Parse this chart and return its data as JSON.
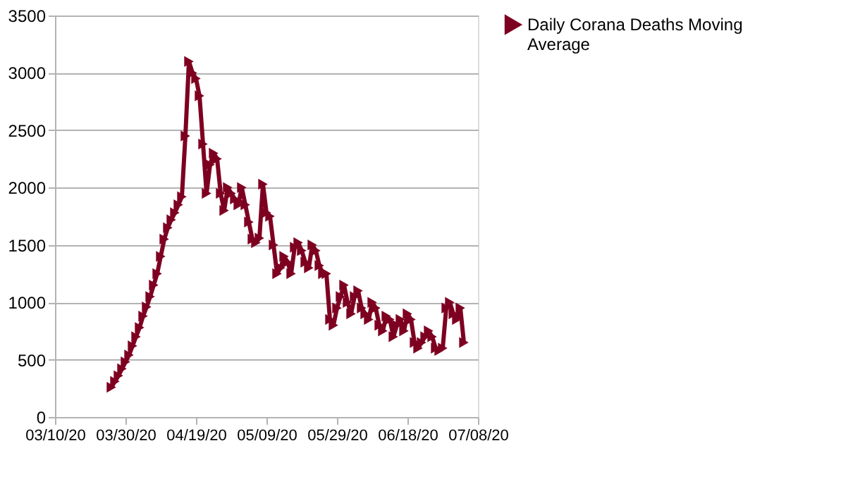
{
  "chart_data": {
    "type": "line",
    "x": [
      "2020-03-26",
      "2020-03-27",
      "2020-03-28",
      "2020-03-29",
      "2020-03-30",
      "2020-03-31",
      "2020-04-01",
      "2020-04-02",
      "2020-04-03",
      "2020-04-04",
      "2020-04-05",
      "2020-04-06",
      "2020-04-07",
      "2020-04-08",
      "2020-04-09",
      "2020-04-10",
      "2020-04-11",
      "2020-04-12",
      "2020-04-13",
      "2020-04-14",
      "2020-04-15",
      "2020-04-16",
      "2020-04-17",
      "2020-04-18",
      "2020-04-19",
      "2020-04-20",
      "2020-04-21",
      "2020-04-22",
      "2020-04-23",
      "2020-04-24",
      "2020-04-25",
      "2020-04-26",
      "2020-04-27",
      "2020-04-28",
      "2020-04-29",
      "2020-04-30",
      "2020-05-01",
      "2020-05-02",
      "2020-05-03",
      "2020-05-04",
      "2020-05-05",
      "2020-05-06",
      "2020-05-07",
      "2020-05-08",
      "2020-05-09",
      "2020-05-10",
      "2020-05-11",
      "2020-05-12",
      "2020-05-13",
      "2020-05-14",
      "2020-05-15",
      "2020-05-16",
      "2020-05-17",
      "2020-05-18",
      "2020-05-19",
      "2020-05-20",
      "2020-05-21",
      "2020-05-22",
      "2020-05-23",
      "2020-05-24",
      "2020-05-25",
      "2020-05-26",
      "2020-05-27",
      "2020-05-28",
      "2020-05-29",
      "2020-05-30",
      "2020-05-31",
      "2020-06-01",
      "2020-06-02",
      "2020-06-03",
      "2020-06-04",
      "2020-06-05",
      "2020-06-06",
      "2020-06-07",
      "2020-06-08",
      "2020-06-09",
      "2020-06-10",
      "2020-06-11",
      "2020-06-12",
      "2020-06-13",
      "2020-06-14",
      "2020-06-15",
      "2020-06-16",
      "2020-06-17",
      "2020-06-18",
      "2020-06-19",
      "2020-06-20",
      "2020-06-21",
      "2020-06-22",
      "2020-06-23",
      "2020-06-24",
      "2020-06-25",
      "2020-06-26",
      "2020-06-27",
      "2020-06-28",
      "2020-06-29",
      "2020-06-30",
      "2020-07-01",
      "2020-07-02",
      "2020-07-03",
      "2020-07-04"
    ],
    "series": [
      {
        "name": "Daily Corana Deaths Moving Average",
        "color": "#7e0021",
        "values": [
          260,
          310,
          360,
          420,
          480,
          540,
          620,
          700,
          780,
          880,
          960,
          1050,
          1150,
          1250,
          1400,
          1550,
          1650,
          1720,
          1780,
          1850,
          1920,
          2450,
          3100,
          3000,
          2950,
          2800,
          2380,
          1950,
          2200,
          2300,
          2250,
          1950,
          1800,
          2000,
          1950,
          1900,
          1850,
          2000,
          1850,
          1700,
          1550,
          1520,
          1560,
          2030,
          1780,
          1750,
          1500,
          1250,
          1300,
          1400,
          1350,
          1250,
          1480,
          1520,
          1450,
          1350,
          1300,
          1500,
          1450,
          1320,
          1250,
          1250,
          850,
          800,
          950,
          1050,
          1150,
          1000,
          900,
          1050,
          1100,
          950,
          900,
          850,
          1000,
          950,
          800,
          750,
          880,
          850,
          700,
          800,
          850,
          750,
          900,
          850,
          650,
          600,
          650,
          700,
          750,
          700,
          600,
          580,
          600,
          950,
          1000,
          900,
          850,
          950,
          650
        ]
      }
    ],
    "xlim": [
      "2020-03-10",
      "2020-07-08"
    ],
    "xticks": [
      {
        "value": "2020-03-10",
        "label": "03/10/20"
      },
      {
        "value": "2020-03-30",
        "label": "03/30/20"
      },
      {
        "value": "2020-04-19",
        "label": "04/19/20"
      },
      {
        "value": "2020-05-09",
        "label": "05/09/20"
      },
      {
        "value": "2020-05-29",
        "label": "05/29/20"
      },
      {
        "value": "2020-06-18",
        "label": "06/18/20"
      },
      {
        "value": "2020-07-08",
        "label": "07/08/20"
      }
    ],
    "ylim": [
      0,
      3500
    ],
    "yticks": [
      0,
      500,
      1000,
      1500,
      2000,
      2500,
      3000,
      3500
    ],
    "grid": "y",
    "legend": "right",
    "marker": "triangle",
    "line_style": "solid"
  }
}
